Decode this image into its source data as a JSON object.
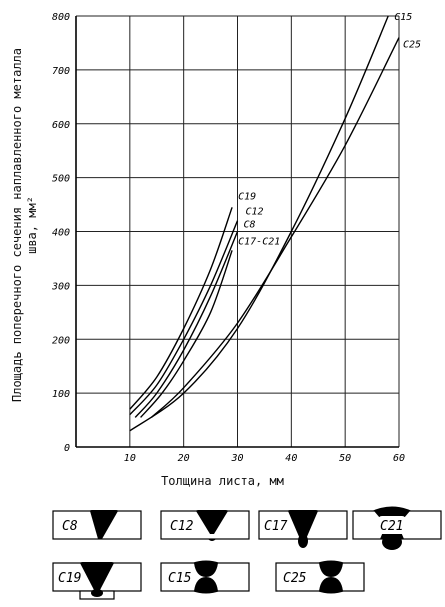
{
  "chart_data": {
    "type": "line",
    "xlabel": "Толщина листа, мм",
    "ylabel": "Площадь поперечного сечения наплавленного металла шва, мм²",
    "ylabel_lines": [
      "Площадь поперечного сечения наплавленного металла",
      "шва, мм²"
    ],
    "xlim": [
      0,
      60
    ],
    "ylim": [
      0,
      800
    ],
    "xticks": [
      10,
      20,
      30,
      40,
      50,
      60
    ],
    "yticks": [
      0,
      100,
      200,
      300,
      400,
      500,
      600,
      700,
      800
    ],
    "grid": true,
    "series": [
      {
        "name": "C19",
        "x": [
          10,
          15,
          20,
          25,
          29
        ],
        "y": [
          70,
          130,
          220,
          330,
          445
        ]
      },
      {
        "name": "C12",
        "x": [
          10,
          15,
          20,
          25,
          30
        ],
        "y": [
          60,
          115,
          200,
          300,
          420
        ]
      },
      {
        "name": "C8",
        "x": [
          11,
          15,
          20,
          25,
          30
        ],
        "y": [
          55,
          100,
          180,
          280,
          400
        ]
      },
      {
        "name": "C17-C21",
        "x": [
          12,
          16,
          20,
          25,
          29
        ],
        "y": [
          55,
          100,
          160,
          250,
          365
        ]
      },
      {
        "name": "C15",
        "x": [
          10,
          20,
          30,
          40,
          50,
          58
        ],
        "y": [
          30,
          100,
          220,
          400,
          610,
          800
        ]
      },
      {
        "name": "C25",
        "x": [
          14,
          20,
          30,
          40,
          50,
          60
        ],
        "y": [
          55,
          110,
          230,
          390,
          560,
          760
        ]
      }
    ]
  },
  "profiles": {
    "row1": [
      {
        "label": "C8",
        "type": "single-v-full"
      },
      {
        "label": "C12",
        "type": "single-v-partial"
      },
      {
        "label": "C17",
        "type": "v-backing-bead"
      },
      {
        "label": "C21",
        "type": "double-v-bulb"
      }
    ],
    "row2": [
      {
        "label": "C19",
        "type": "v-backing-strip"
      },
      {
        "label": "C15",
        "type": "double-u"
      },
      {
        "label": "C25",
        "type": "double-u-wide"
      }
    ]
  }
}
